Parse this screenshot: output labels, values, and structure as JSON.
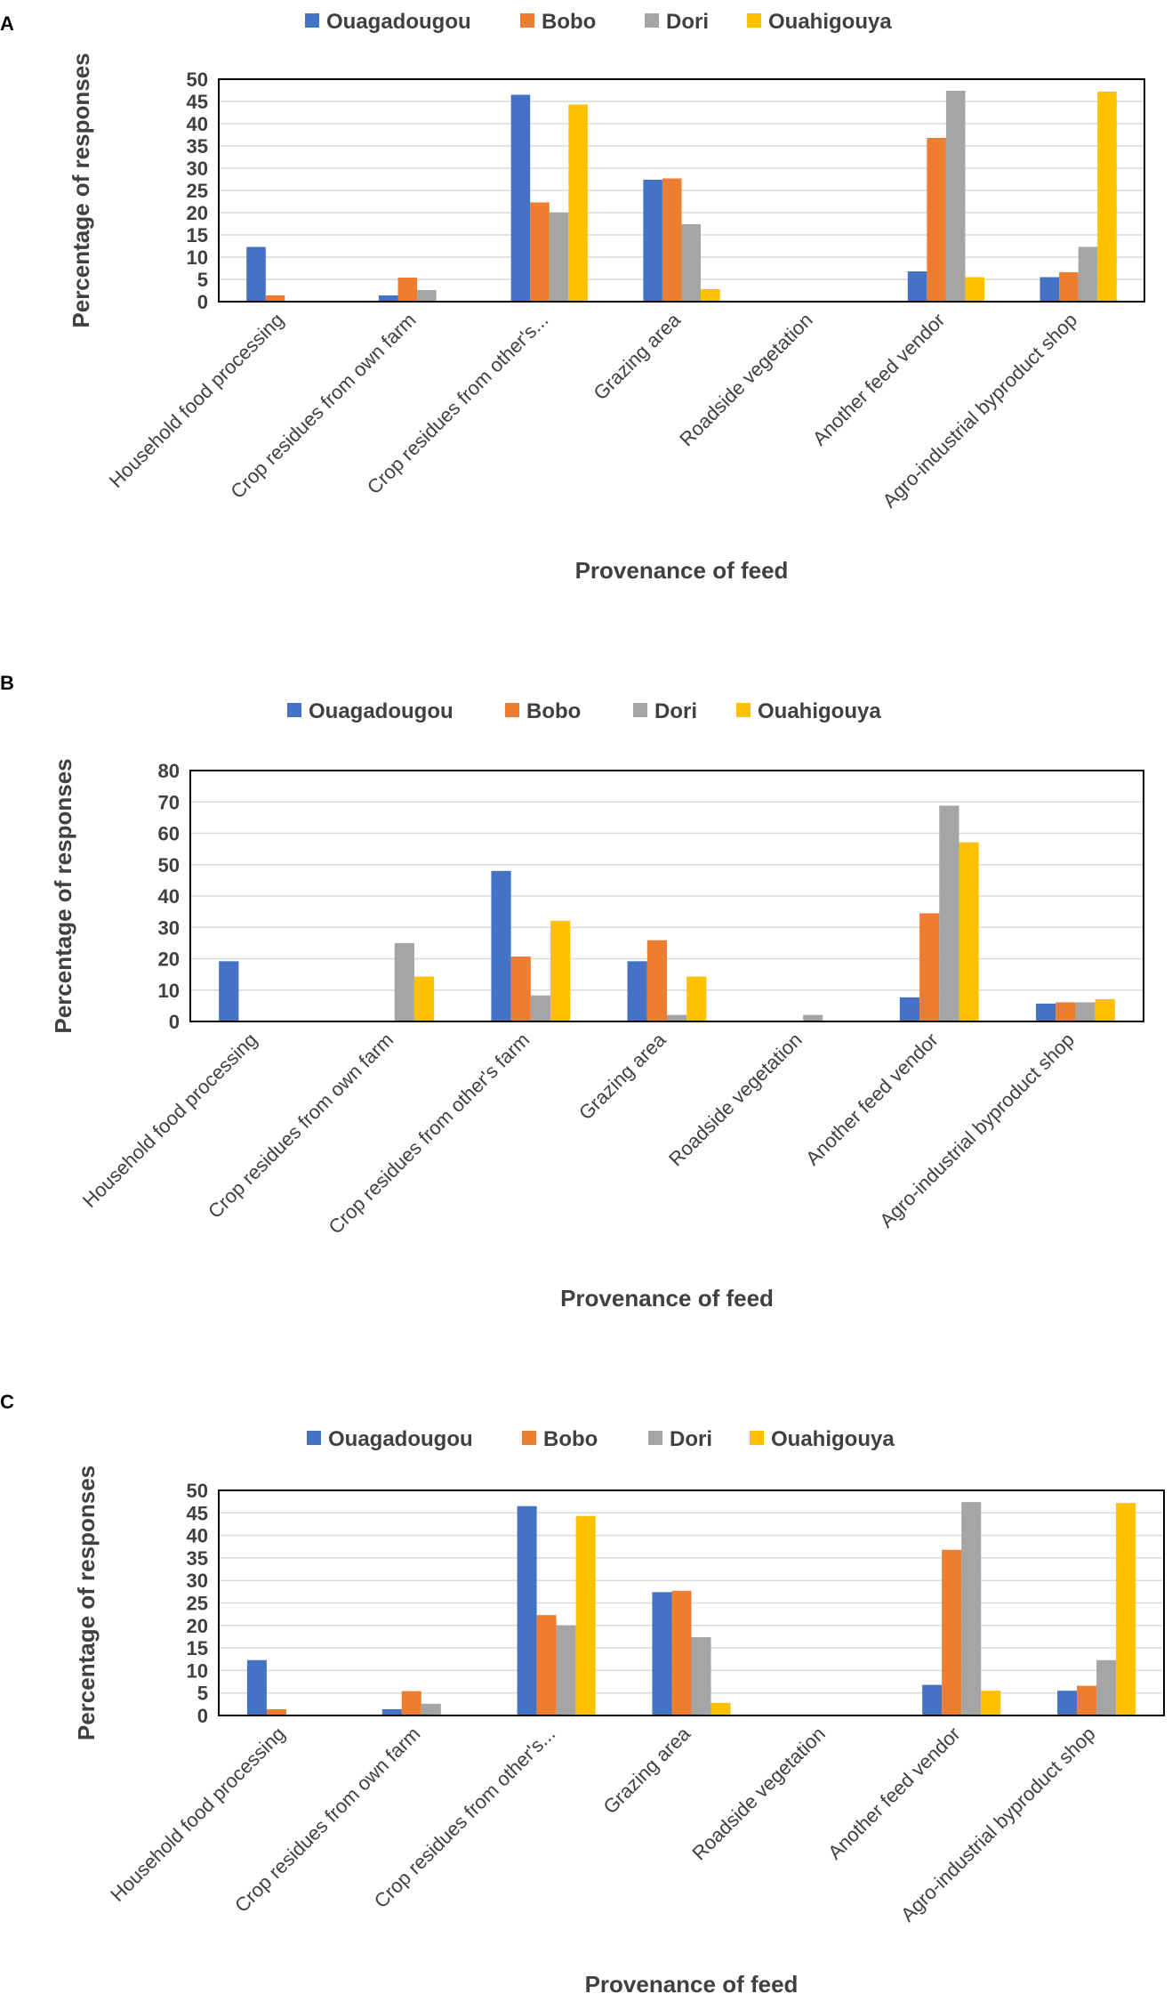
{
  "series_colors": {
    "Ouagadougou": "#4472C4",
    "Bobo": "#ED7D31",
    "Dori": "#A5A5A5",
    "Ouahigouya": "#FFC000"
  },
  "chart_data": [
    {
      "panel": "A",
      "type": "bar",
      "categories": [
        "Household food processing",
        "Crop residues from own farm",
        "Crop residues from other's...",
        "Grazing area",
        "Roadside vegetation",
        "Another feed vendor",
        "Agro-industrial byproduct shop"
      ],
      "series": [
        {
          "name": "Ouagadougou",
          "values": [
            12.3,
            1.4,
            46.5,
            27.4,
            0,
            6.8,
            5.5
          ]
        },
        {
          "name": "Bobo",
          "values": [
            1.4,
            5.4,
            22.3,
            27.7,
            0,
            36.8,
            6.6
          ]
        },
        {
          "name": "Dori",
          "values": [
            0,
            2.6,
            20.0,
            17.4,
            0,
            47.4,
            12.3
          ]
        },
        {
          "name": "Ouahigouya",
          "values": [
            0,
            0,
            44.3,
            2.8,
            0,
            5.5,
            47.2
          ]
        }
      ],
      "yticks": [
        "0",
        "5",
        "10",
        "15",
        "20",
        "25",
        "30",
        "35",
        "40",
        "45",
        "50"
      ],
      "ylim": [
        0,
        50
      ],
      "ylabel": "Percentage of responses",
      "xlabel": "Provenance of feed",
      "legend": [
        "Ouagadougou",
        "Bobo",
        "Dori",
        "Ouahigouya"
      ]
    },
    {
      "panel": "B",
      "type": "bar",
      "categories": [
        "Household food processing",
        "Crop residues from own farm",
        "Crop residues from other's farm",
        "Grazing area",
        "Roadside vegetation",
        "Another feed vendor",
        "Agro-industrial byproduct shop"
      ],
      "series": [
        {
          "name": "Ouagadougou",
          "values": [
            19.2,
            0,
            48.0,
            19.2,
            0,
            7.7,
            5.7
          ]
        },
        {
          "name": "Bobo",
          "values": [
            0,
            0,
            20.7,
            25.9,
            0,
            34.5,
            6.1
          ]
        },
        {
          "name": "Dori",
          "values": [
            0,
            25.0,
            8.3,
            2.1,
            2.1,
            68.8,
            6.1
          ]
        },
        {
          "name": "Ouahigouya",
          "values": [
            0,
            14.3,
            32.1,
            14.3,
            0,
            57.1,
            7.1
          ]
        }
      ],
      "yticks": [
        "0",
        "10",
        "20",
        "30",
        "40",
        "50",
        "60",
        "70",
        "80"
      ],
      "ylim": [
        0,
        80
      ],
      "ylabel": "Percentage of responses",
      "xlabel": "Provenance of feed",
      "legend": [
        "Ouagadougou",
        "Bobo",
        "Dori",
        "Ouahigouya"
      ]
    },
    {
      "panel": "C",
      "type": "bar",
      "categories": [
        "Household food processing",
        "Crop residues from own farm",
        "Crop residues from other's...",
        "Grazing area",
        "Roadside vegetation",
        "Another feed vendor",
        "Agro-industrial byproduct shop"
      ],
      "series": [
        {
          "name": "Ouagadougou",
          "values": [
            12.3,
            1.4,
            46.5,
            27.4,
            0,
            6.8,
            5.5
          ]
        },
        {
          "name": "Bobo",
          "values": [
            1.4,
            5.4,
            22.3,
            27.7,
            0,
            36.8,
            6.6
          ]
        },
        {
          "name": "Dori",
          "values": [
            0,
            2.6,
            20.0,
            17.4,
            0,
            47.4,
            12.3
          ]
        },
        {
          "name": "Ouahigouya",
          "values": [
            0,
            0,
            44.3,
            2.8,
            0,
            5.5,
            47.2
          ]
        }
      ],
      "yticks": [
        "0",
        "5",
        "10",
        "15",
        "20",
        "25",
        "30",
        "35",
        "40",
        "45",
        "50"
      ],
      "ylim": [
        0,
        50
      ],
      "ylabel": "Percentage of responses",
      "xlabel": "Provenance of feed",
      "legend": [
        "Ouagadougou",
        "Bobo",
        "Dori",
        "Ouahigouya"
      ]
    }
  ]
}
